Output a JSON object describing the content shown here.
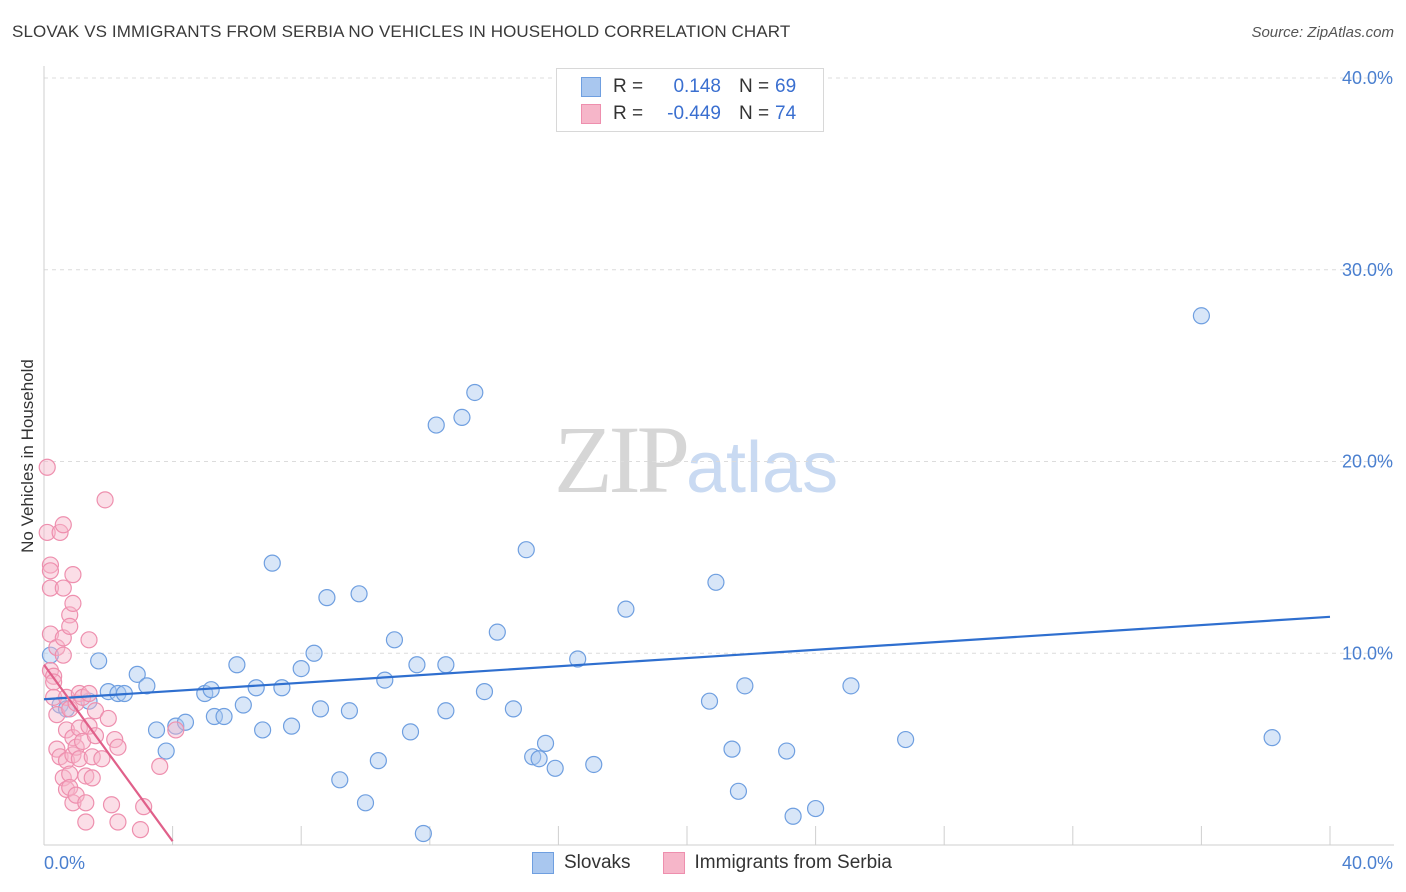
{
  "title": "SLOVAK VS IMMIGRANTS FROM SERBIA NO VEHICLES IN HOUSEHOLD CORRELATION CHART",
  "source": "Source: ZipAtlas.com",
  "watermark": {
    "zip": "ZIP",
    "atlas": "atlas"
  },
  "legend": {
    "r_label": "R =",
    "n_label": "N =",
    "rows": [
      {
        "r": "0.148",
        "n": "69",
        "color": "#a9c7ef"
      },
      {
        "r": "-0.449",
        "n": "74",
        "color": "#f6b6c9"
      }
    ]
  },
  "chart_data": {
    "type": "scatter",
    "xlabel": "",
    "ylabel": "No Vehicles in Household",
    "xlim": [
      0,
      40
    ],
    "ylim": [
      0,
      40
    ],
    "x_tick_labels": [
      "0.0%",
      "40.0%"
    ],
    "y_tick_labels": [
      "10.0%",
      "20.0%",
      "30.0%",
      "40.0%"
    ],
    "y_ticks": [
      10,
      20,
      30,
      40
    ],
    "grid": true,
    "legend_position": "bottom",
    "series": [
      {
        "name": "Slovaks",
        "color": "#6f9fe0",
        "fill": "#a9c7ef",
        "trend": {
          "x": [
            0,
            40
          ],
          "y": [
            7.6,
            11.9
          ],
          "color": "#2f6fcf"
        },
        "points": [
          [
            0.2,
            9.9
          ],
          [
            0.5,
            7.3
          ],
          [
            0.7,
            7.1
          ],
          [
            1.4,
            7.5
          ],
          [
            1.7,
            9.6
          ],
          [
            2.0,
            8.0
          ],
          [
            2.3,
            7.9
          ],
          [
            2.5,
            7.9
          ],
          [
            2.9,
            8.9
          ],
          [
            3.2,
            8.3
          ],
          [
            3.5,
            6.0
          ],
          [
            3.8,
            4.9
          ],
          [
            4.1,
            6.2
          ],
          [
            4.4,
            6.4
          ],
          [
            5.0,
            7.9
          ],
          [
            5.2,
            8.1
          ],
          [
            5.3,
            6.7
          ],
          [
            5.6,
            6.7
          ],
          [
            6.0,
            9.4
          ],
          [
            6.2,
            7.3
          ],
          [
            6.6,
            8.2
          ],
          [
            6.8,
            6.0
          ],
          [
            7.1,
            14.7
          ],
          [
            7.4,
            8.2
          ],
          [
            7.7,
            6.2
          ],
          [
            8.0,
            9.2
          ],
          [
            8.4,
            10.0
          ],
          [
            8.6,
            7.1
          ],
          [
            8.8,
            12.9
          ],
          [
            9.2,
            3.4
          ],
          [
            9.5,
            7.0
          ],
          [
            9.8,
            13.1
          ],
          [
            10.0,
            2.2
          ],
          [
            10.4,
            4.4
          ],
          [
            10.6,
            8.6
          ],
          [
            10.9,
            10.7
          ],
          [
            11.4,
            5.9
          ],
          [
            11.6,
            9.4
          ],
          [
            11.8,
            0.6
          ],
          [
            12.2,
            21.9
          ],
          [
            12.5,
            7.0
          ],
          [
            12.5,
            9.4
          ],
          [
            13.0,
            22.3
          ],
          [
            13.4,
            23.6
          ],
          [
            13.7,
            8.0
          ],
          [
            14.1,
            11.1
          ],
          [
            14.6,
            7.1
          ],
          [
            15.0,
            15.4
          ],
          [
            15.2,
            4.6
          ],
          [
            15.4,
            4.5
          ],
          [
            15.6,
            5.3
          ],
          [
            15.9,
            4.0
          ],
          [
            16.6,
            9.7
          ],
          [
            17.1,
            4.2
          ],
          [
            18.1,
            12.3
          ],
          [
            20.7,
            7.5
          ],
          [
            20.9,
            13.7
          ],
          [
            21.4,
            5.0
          ],
          [
            21.6,
            2.8
          ],
          [
            21.8,
            8.3
          ],
          [
            23.1,
            4.9
          ],
          [
            23.3,
            1.5
          ],
          [
            24.0,
            1.9
          ],
          [
            25.1,
            8.3
          ],
          [
            26.8,
            5.5
          ],
          [
            36.0,
            27.6
          ],
          [
            38.2,
            5.6
          ]
        ]
      },
      {
        "name": "Immigrants from Serbia",
        "color": "#ee8fae",
        "fill": "#f6b6c9",
        "trend": {
          "x": [
            0,
            4.0
          ],
          "y": [
            9.4,
            0.2
          ],
          "color": "#e0608a"
        },
        "points": [
          [
            0.1,
            19.7
          ],
          [
            0.1,
            16.3
          ],
          [
            0.2,
            14.6
          ],
          [
            0.2,
            14.3
          ],
          [
            0.2,
            13.4
          ],
          [
            0.2,
            11.0
          ],
          [
            0.2,
            9.1
          ],
          [
            0.3,
            8.8
          ],
          [
            0.3,
            8.5
          ],
          [
            0.3,
            7.7
          ],
          [
            0.4,
            10.3
          ],
          [
            0.4,
            6.8
          ],
          [
            0.4,
            5.0
          ],
          [
            0.5,
            4.6
          ],
          [
            0.5,
            16.3
          ],
          [
            0.6,
            16.7
          ],
          [
            0.6,
            13.4
          ],
          [
            0.6,
            10.8
          ],
          [
            0.6,
            9.9
          ],
          [
            0.6,
            3.5
          ],
          [
            0.7,
            7.7
          ],
          [
            0.7,
            6.0
          ],
          [
            0.7,
            4.4
          ],
          [
            0.7,
            2.9
          ],
          [
            0.8,
            12.0
          ],
          [
            0.8,
            11.4
          ],
          [
            0.8,
            7.1
          ],
          [
            0.8,
            3.7
          ],
          [
            0.8,
            3.0
          ],
          [
            0.9,
            14.1
          ],
          [
            0.9,
            12.6
          ],
          [
            0.9,
            5.6
          ],
          [
            0.9,
            4.7
          ],
          [
            0.9,
            2.2
          ],
          [
            1.0,
            7.4
          ],
          [
            1.0,
            5.1
          ],
          [
            1.0,
            2.6
          ],
          [
            1.1,
            7.9
          ],
          [
            1.1,
            6.1
          ],
          [
            1.1,
            4.5
          ],
          [
            1.2,
            7.7
          ],
          [
            1.2,
            5.4
          ],
          [
            1.3,
            3.6
          ],
          [
            1.3,
            2.2
          ],
          [
            1.3,
            1.2
          ],
          [
            1.4,
            10.7
          ],
          [
            1.4,
            7.9
          ],
          [
            1.4,
            6.2
          ],
          [
            1.5,
            4.6
          ],
          [
            1.5,
            3.5
          ],
          [
            1.6,
            7.0
          ],
          [
            1.6,
            5.7
          ],
          [
            1.8,
            4.5
          ],
          [
            1.9,
            18.0
          ],
          [
            2.0,
            6.6
          ],
          [
            2.1,
            2.1
          ],
          [
            2.2,
            5.5
          ],
          [
            2.3,
            5.1
          ],
          [
            2.3,
            1.2
          ],
          [
            3.0,
            0.8
          ],
          [
            3.1,
            2.0
          ],
          [
            3.6,
            4.1
          ],
          [
            4.1,
            6.0
          ]
        ]
      }
    ]
  },
  "bottom_legend": [
    "Slovaks",
    "Immigrants from Serbia"
  ]
}
